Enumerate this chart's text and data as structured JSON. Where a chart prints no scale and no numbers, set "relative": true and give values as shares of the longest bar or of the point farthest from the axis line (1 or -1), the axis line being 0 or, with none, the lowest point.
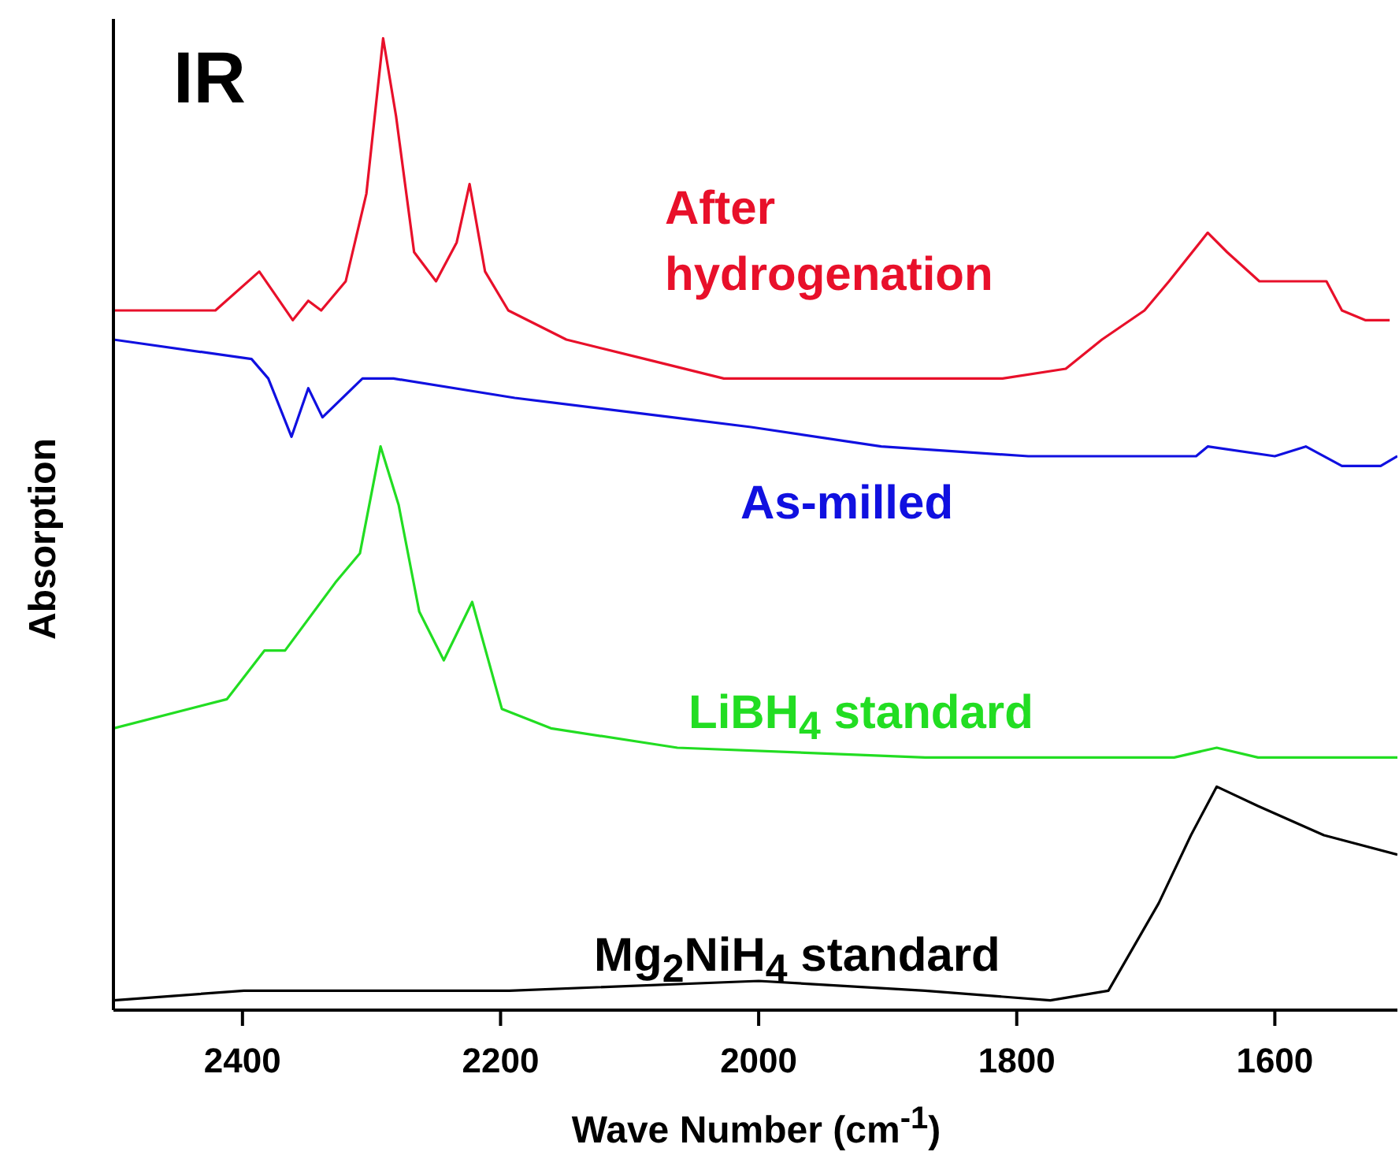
{
  "chart_data": {
    "type": "line",
    "relative": true,
    "xlabel": "Wave Number (cm$^{-1}$)",
    "ylabel": "Absorption",
    "annotations": [
      "IR"
    ],
    "xlim": [
      2500,
      1505
    ],
    "xticks": [
      2400,
      2200,
      2000,
      1800,
      1600
    ],
    "tick_labels": "x",
    "marker": "none",
    "line_style": "solid",
    "series": [
      {
        "name": "After hydrogenation",
        "color": "#e8102a",
        "x": [
          2500,
          2421,
          2387,
          2361,
          2349,
          2339,
          2320,
          2304,
          2291,
          2281,
          2267,
          2250,
          2234,
          2224,
          2212,
          2194,
          2149,
          2088,
          2027,
          1877,
          1811,
          1762,
          1734,
          1701,
          1682,
          1652,
          1637,
          1612,
          1588,
          1560,
          1548,
          1530,
          1511
        ],
        "values": [
          0.72,
          0.72,
          0.76,
          0.71,
          0.73,
          0.72,
          0.75,
          0.84,
          1.0,
          0.92,
          0.78,
          0.75,
          0.79,
          0.85,
          0.76,
          0.72,
          0.69,
          0.67,
          0.65,
          0.65,
          0.65,
          0.66,
          0.69,
          0.72,
          0.75,
          0.8,
          0.78,
          0.75,
          0.75,
          0.75,
          0.72,
          0.71,
          0.71
        ]
      },
      {
        "name": "As-milled",
        "color": "#1010e0",
        "x": [
          2500,
          2393,
          2380,
          2362,
          2349,
          2338,
          2307,
          2283,
          2189,
          2067,
          2006,
          1905,
          1791,
          1661,
          1652,
          1600,
          1576,
          1548,
          1518,
          1505
        ],
        "values": [
          0.69,
          0.67,
          0.65,
          0.59,
          0.64,
          0.61,
          0.65,
          0.65,
          0.63,
          0.61,
          0.6,
          0.58,
          0.57,
          0.57,
          0.58,
          0.57,
          0.58,
          0.56,
          0.56,
          0.57
        ]
      },
      {
        "name": "LiBH$_{4}$ standard",
        "color": "#22dd22",
        "x": [
          2500,
          2412,
          2383,
          2367,
          2328,
          2309,
          2293,
          2279,
          2263,
          2244,
          2222,
          2199,
          2161,
          2063,
          1871,
          1678,
          1645,
          1613,
          1505
        ],
        "values": [
          0.29,
          0.32,
          0.37,
          0.37,
          0.44,
          0.47,
          0.58,
          0.52,
          0.41,
          0.36,
          0.42,
          0.31,
          0.29,
          0.27,
          0.26,
          0.26,
          0.27,
          0.26,
          0.26
        ]
      },
      {
        "name": "Mg$_{2}$NiH$_{4}$ standard",
        "color": "#000000",
        "x": [
          2500,
          2399,
          2193,
          2000,
          1871,
          1774,
          1729,
          1690,
          1665,
          1645,
          1613,
          1562,
          1505
        ],
        "values": [
          0.01,
          0.02,
          0.02,
          0.03,
          0.02,
          0.01,
          0.02,
          0.11,
          0.18,
          0.23,
          0.21,
          0.18,
          0.16
        ]
      }
    ]
  }
}
